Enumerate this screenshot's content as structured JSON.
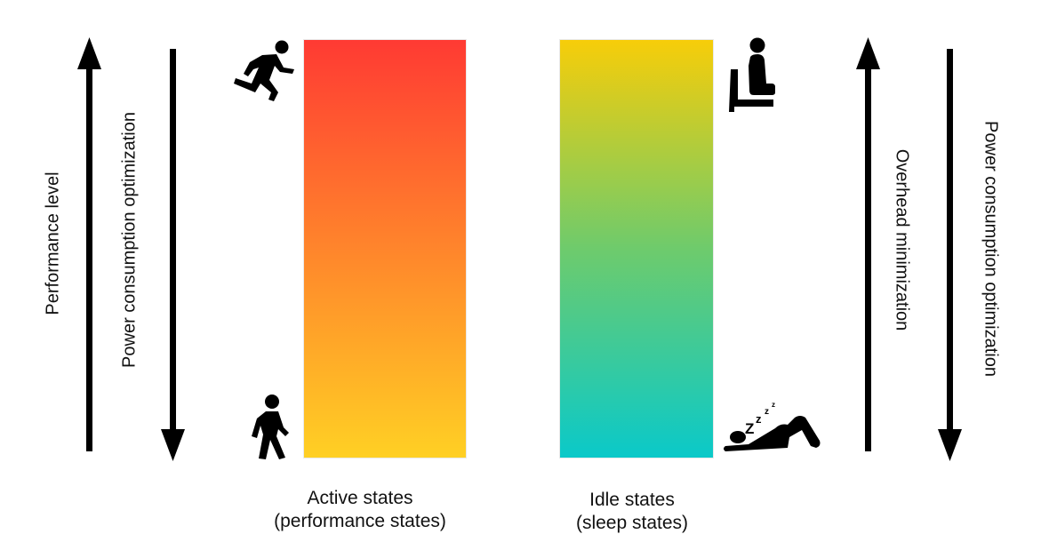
{
  "colors": {
    "active_top": "#ff3a33",
    "active_bottom": "#ffd024",
    "idle_top": "#f7cd09",
    "idle_mid": "#6ecb6c",
    "idle_bottom": "#0ac9c9",
    "arrow": "#000000"
  },
  "left_axis": {
    "outer_label": "Performance level",
    "outer_direction": "up",
    "inner_label": "Power consumption optimization",
    "inner_direction": "down"
  },
  "right_axis": {
    "inner_label": "Overhead minimization",
    "inner_direction": "up",
    "outer_label": "Power consumption optimization",
    "outer_direction": "down"
  },
  "active_states": {
    "caption_line1": "Active states",
    "caption_line2": "(performance states)",
    "top_icon": "running-person-icon",
    "bottom_icon": "walking-person-icon"
  },
  "idle_states": {
    "caption_line1": "Idle states",
    "caption_line2": "(sleep states)",
    "top_icon": "sitting-person-icon",
    "bottom_icon": "sleeping-person-icon",
    "sleep_text": "Z z z"
  }
}
